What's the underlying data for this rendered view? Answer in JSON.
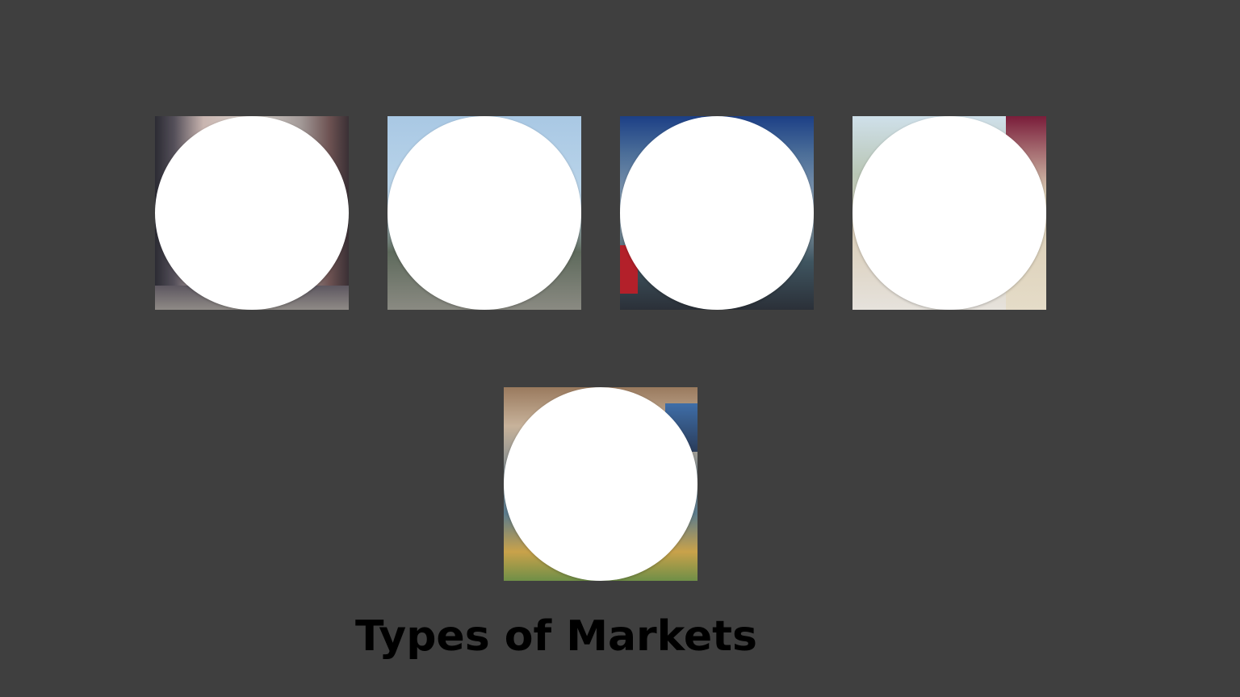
{
  "page": {
    "title": "Types of Markets"
  },
  "tiles": [
    {
      "kind": "market photo"
    },
    {
      "kind": "market photo"
    },
    {
      "kind": "market photo"
    },
    {
      "kind": "market photo"
    },
    {
      "kind": "market photo"
    }
  ]
}
